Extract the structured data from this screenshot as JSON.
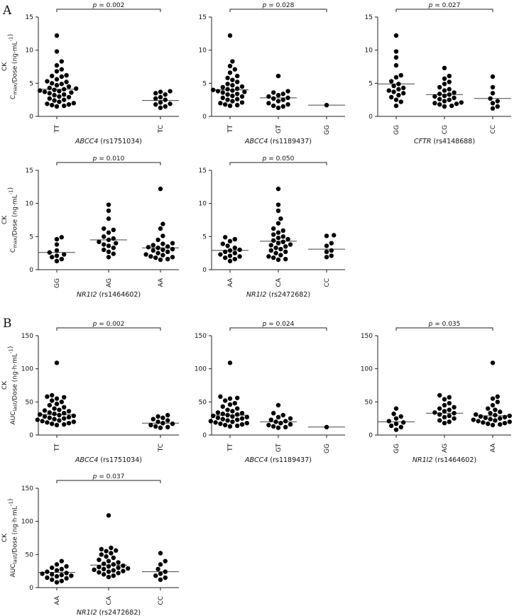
{
  "figure": {
    "sections": [
      {
        "letter": "A",
        "ylabel_main": "Cmax/Dose (ng·mL⁻¹)"
      },
      {
        "letter": "B",
        "ylabel_main": "AUClast/Dose (ng·h·mL⁻¹)"
      }
    ]
  },
  "chart_data": [
    {
      "type": "scatter",
      "section": "A",
      "ylabel_prefix": "CK",
      "ylabel": "Cmax/Dose (ng·mL⁻¹)",
      "gene": "ABCC4",
      "snp": "(rs1751034)",
      "ylim": [
        0,
        15
      ],
      "yticks": [
        0,
        5,
        10,
        15
      ],
      "categories": [
        "TT",
        "TC"
      ],
      "p_label": "p = 0.002",
      "bracket": [
        0,
        1
      ],
      "groups": [
        {
          "name": "TT",
          "median": 4.1,
          "values": [
            12.2,
            9.8,
            8.3,
            7.7,
            7.1,
            6.8,
            6.2,
            6.1,
            6.0,
            5.6,
            5.3,
            5.2,
            5.0,
            4.9,
            4.7,
            4.5,
            4.3,
            4.2,
            4.1,
            4.0,
            3.9,
            3.8,
            3.7,
            3.6,
            3.5,
            3.3,
            3.2,
            3.0,
            2.9,
            2.7,
            2.5,
            2.4,
            2.2,
            2.0,
            1.9,
            1.8,
            1.7,
            1.6,
            1.5
          ]
        },
        {
          "name": "TC",
          "median": 2.4,
          "values": [
            3.8,
            3.7,
            3.5,
            3.3,
            2.9,
            2.7,
            2.5,
            2.1,
            1.9,
            1.8,
            1.5,
            1.3
          ]
        }
      ]
    },
    {
      "type": "scatter",
      "section": "A",
      "ylabel_prefix": "",
      "ylabel": "",
      "gene": "ABCC4",
      "snp": "(rs1189437)",
      "ylim": [
        0,
        15
      ],
      "yticks": [
        0,
        5,
        10,
        15
      ],
      "categories": [
        "TT",
        "GT",
        "GG"
      ],
      "p_label": "p = 0.028",
      "bracket": [
        0,
        2
      ],
      "groups": [
        {
          "name": "TT",
          "median": 4.0,
          "values": [
            12.2,
            8.3,
            7.6,
            7.1,
            6.6,
            6.1,
            5.8,
            5.5,
            5.2,
            4.9,
            4.7,
            4.5,
            4.4,
            4.2,
            4.1,
            4.0,
            3.9,
            3.8,
            3.7,
            3.6,
            3.4,
            3.3,
            3.1,
            3.0,
            2.8,
            2.6,
            2.5,
            2.3,
            2.1,
            2.0,
            1.8,
            1.7,
            1.6
          ]
        },
        {
          "name": "GT",
          "median": 2.8,
          "values": [
            6.1,
            3.8,
            3.6,
            3.4,
            3.2,
            3.0,
            2.8,
            2.7,
            2.5,
            2.3,
            2.0,
            1.8,
            1.6,
            1.5,
            1.3
          ]
        },
        {
          "name": "GG",
          "median": 1.7,
          "values": [
            1.7
          ]
        }
      ]
    },
    {
      "type": "scatter",
      "section": "A",
      "ylabel_prefix": "",
      "ylabel": "",
      "gene": "CFTR",
      "snp": "(rs4148688)",
      "ylim": [
        0,
        15
      ],
      "yticks": [
        0,
        5,
        10,
        15
      ],
      "categories": [
        "GG",
        "CG",
        "CC"
      ],
      "p_label": "p = 0.027",
      "bracket": [
        0,
        2
      ],
      "groups": [
        {
          "name": "GG",
          "median": 4.9,
          "values": [
            12.2,
            9.8,
            8.9,
            7.7,
            6.2,
            5.9,
            5.3,
            4.9,
            4.6,
            4.3,
            4.1,
            3.9,
            3.7,
            3.5,
            3.2,
            2.9,
            2.5,
            2.2,
            1.6
          ]
        },
        {
          "name": "CG",
          "median": 3.3,
          "values": [
            7.3,
            6.1,
            5.7,
            5.2,
            4.9,
            4.4,
            4.1,
            3.9,
            3.6,
            3.4,
            3.3,
            3.1,
            3.0,
            2.8,
            2.6,
            2.5,
            2.3,
            2.1,
            2.0,
            1.9,
            1.8,
            1.6,
            1.5
          ]
        },
        {
          "name": "CC",
          "median": 2.7,
          "values": [
            6.0,
            4.4,
            3.5,
            2.7,
            2.3,
            2.0,
            1.5,
            1.2
          ]
        }
      ]
    },
    {
      "type": "scatter",
      "section": "A",
      "ylabel_prefix": "CK",
      "ylabel": "Cmax/Dose (ng·mL⁻¹)",
      "gene": "NR1I2",
      "snp": "(rs1464602)",
      "ylim": [
        0,
        15
      ],
      "yticks": [
        0,
        5,
        10,
        15
      ],
      "categories": [
        "GG",
        "AG",
        "AA"
      ],
      "p_label": "p = 0.010",
      "bracket": [
        0,
        2
      ],
      "groups": [
        {
          "name": "GG",
          "median": 2.6,
          "values": [
            4.9,
            4.6,
            3.8,
            2.9,
            2.6,
            2.3,
            2.1,
            1.9,
            1.6,
            1.3
          ]
        },
        {
          "name": "AG",
          "median": 4.5,
          "values": [
            9.8,
            8.9,
            7.7,
            6.2,
            6.0,
            5.6,
            5.0,
            4.7,
            4.5,
            4.2,
            4.0,
            3.8,
            3.6,
            3.3,
            3.0,
            2.7,
            2.4,
            1.9
          ]
        },
        {
          "name": "AA",
          "median": 3.3,
          "values": [
            12.2,
            6.9,
            6.2,
            5.1,
            4.5,
            4.0,
            3.9,
            3.7,
            3.5,
            3.4,
            3.3,
            3.1,
            3.0,
            2.9,
            2.7,
            2.5,
            2.3,
            2.2,
            2.0,
            1.9,
            1.8,
            1.6,
            1.5
          ]
        }
      ]
    },
    {
      "type": "scatter",
      "section": "A",
      "ylabel_prefix": "",
      "ylabel": "",
      "gene": "NR1I2",
      "snp": "(rs2472682)",
      "ylim": [
        0,
        15
      ],
      "yticks": [
        0,
        5,
        10,
        15
      ],
      "categories": [
        "AA",
        "CA",
        "CC"
      ],
      "p_label": "p = 0.050",
      "bracket": [
        0,
        2
      ],
      "groups": [
        {
          "name": "AA",
          "median": 2.9,
          "values": [
            4.9,
            4.6,
            4.3,
            3.9,
            3.6,
            3.3,
            3.0,
            2.9,
            2.7,
            2.5,
            2.3,
            2.1,
            2.0,
            1.8,
            1.6,
            1.3
          ]
        },
        {
          "name": "CA",
          "median": 4.3,
          "values": [
            12.2,
            9.8,
            8.9,
            7.7,
            7.0,
            6.2,
            5.9,
            5.6,
            5.3,
            5.0,
            4.8,
            4.6,
            4.4,
            4.2,
            4.0,
            3.8,
            3.7,
            3.5,
            3.3,
            3.1,
            2.9,
            2.7,
            2.5,
            2.2,
            2.0,
            1.8,
            1.6,
            1.5
          ]
        },
        {
          "name": "CC",
          "median": 3.1,
          "values": [
            5.2,
            5.1,
            4.0,
            3.6,
            2.9,
            2.7,
            2.1,
            1.9
          ]
        }
      ]
    },
    {
      "type": "scatter",
      "section": "B",
      "ylabel_prefix": "CK",
      "ylabel": "AUClast/Dose (ng·h·mL⁻¹)",
      "gene": "ABCC4",
      "snp": "(rs1751034)",
      "ylim": [
        0,
        150
      ],
      "yticks": [
        0,
        50,
        100,
        150
      ],
      "categories": [
        "TT",
        "TC"
      ],
      "p_label": "p = 0.002",
      "bracket": [
        0,
        1
      ],
      "groups": [
        {
          "name": "TT",
          "median": 31,
          "values": [
            109,
            60,
            58,
            57,
            55,
            52,
            50,
            47,
            45,
            42,
            40,
            38,
            37,
            36,
            34,
            33,
            32,
            31,
            30,
            29,
            28,
            27,
            26,
            25,
            24,
            23,
            22,
            21,
            20,
            19,
            18,
            17,
            16,
            15
          ]
        },
        {
          "name": "TC",
          "median": 18,
          "values": [
            30,
            28,
            26,
            24,
            22,
            20,
            18,
            17,
            15,
            13,
            12,
            11
          ]
        }
      ]
    },
    {
      "type": "scatter",
      "section": "B",
      "ylabel_prefix": "",
      "ylabel": "",
      "gene": "ABCC4",
      "snp": "(rs1189437)",
      "ylim": [
        0,
        150
      ],
      "yticks": [
        0,
        50,
        100,
        150
      ],
      "categories": [
        "TT",
        "GT",
        "GG"
      ],
      "p_label": "p = 0.024",
      "bracket": [
        0,
        2
      ],
      "groups": [
        {
          "name": "TT",
          "median": 30,
          "values": [
            109,
            58,
            56,
            55,
            52,
            48,
            46,
            43,
            40,
            38,
            36,
            34,
            33,
            32,
            31,
            30,
            29,
            28,
            27,
            26,
            25,
            24,
            23,
            22,
            21,
            20,
            19,
            18,
            17,
            16,
            15,
            14,
            13
          ]
        },
        {
          "name": "GT",
          "median": 20,
          "values": [
            45,
            33,
            30,
            27,
            25,
            23,
            21,
            20,
            18,
            16,
            15,
            13,
            12,
            11
          ]
        },
        {
          "name": "GG",
          "median": 12,
          "values": [
            12
          ]
        }
      ]
    },
    {
      "type": "scatter",
      "section": "B",
      "ylabel_prefix": "",
      "ylabel": "",
      "gene": "NR1I2",
      "snp": "(rs1464602)",
      "ylim": [
        0,
        150
      ],
      "yticks": [
        0,
        50,
        100,
        150
      ],
      "categories": [
        "GG",
        "AG",
        "AA"
      ],
      "p_label": "p = 0.035",
      "bracket": [
        0,
        2
      ],
      "groups": [
        {
          "name": "GG",
          "median": 20,
          "values": [
            40,
            32,
            28,
            25,
            21,
            19,
            17,
            14,
            12,
            8
          ]
        },
        {
          "name": "AG",
          "median": 33,
          "values": [
            60,
            57,
            54,
            48,
            45,
            42,
            40,
            38,
            36,
            34,
            33,
            31,
            29,
            27,
            25,
            22,
            20,
            18
          ]
        },
        {
          "name": "AA",
          "median": 29,
          "values": [
            109,
            58,
            55,
            50,
            45,
            40,
            38,
            35,
            33,
            31,
            30,
            29,
            28,
            27,
            26,
            25,
            24,
            23,
            22,
            21,
            20,
            19,
            18,
            17,
            16,
            15
          ]
        }
      ]
    },
    {
      "type": "scatter",
      "section": "B",
      "ylabel_prefix": "CK",
      "ylabel": "AUClast/Dose (ng·h·mL⁻¹)",
      "gene": "NR1I2",
      "snp": "(rs2472682)",
      "ylim": [
        0,
        150
      ],
      "yticks": [
        0,
        50,
        100,
        150
      ],
      "categories": [
        "AA",
        "CA",
        "CC"
      ],
      "p_label": "p = 0.037",
      "bracket": [
        0,
        2
      ],
      "groups": [
        {
          "name": "AA",
          "median": 23,
          "values": [
            40,
            35,
            32,
            30,
            28,
            26,
            24,
            22,
            21,
            20,
            19,
            18,
            17,
            15,
            14,
            12,
            10,
            8
          ]
        },
        {
          "name": "CA",
          "median": 34,
          "values": [
            109,
            60,
            58,
            56,
            55,
            52,
            50,
            47,
            45,
            42,
            40,
            38,
            36,
            35,
            33,
            32,
            31,
            30,
            29,
            28,
            27,
            26,
            25,
            24,
            23,
            22,
            20,
            18,
            16
          ]
        },
        {
          "name": "CC",
          "median": 24,
          "values": [
            52,
            40,
            35,
            28,
            24,
            21,
            18,
            15,
            12
          ]
        }
      ]
    }
  ]
}
